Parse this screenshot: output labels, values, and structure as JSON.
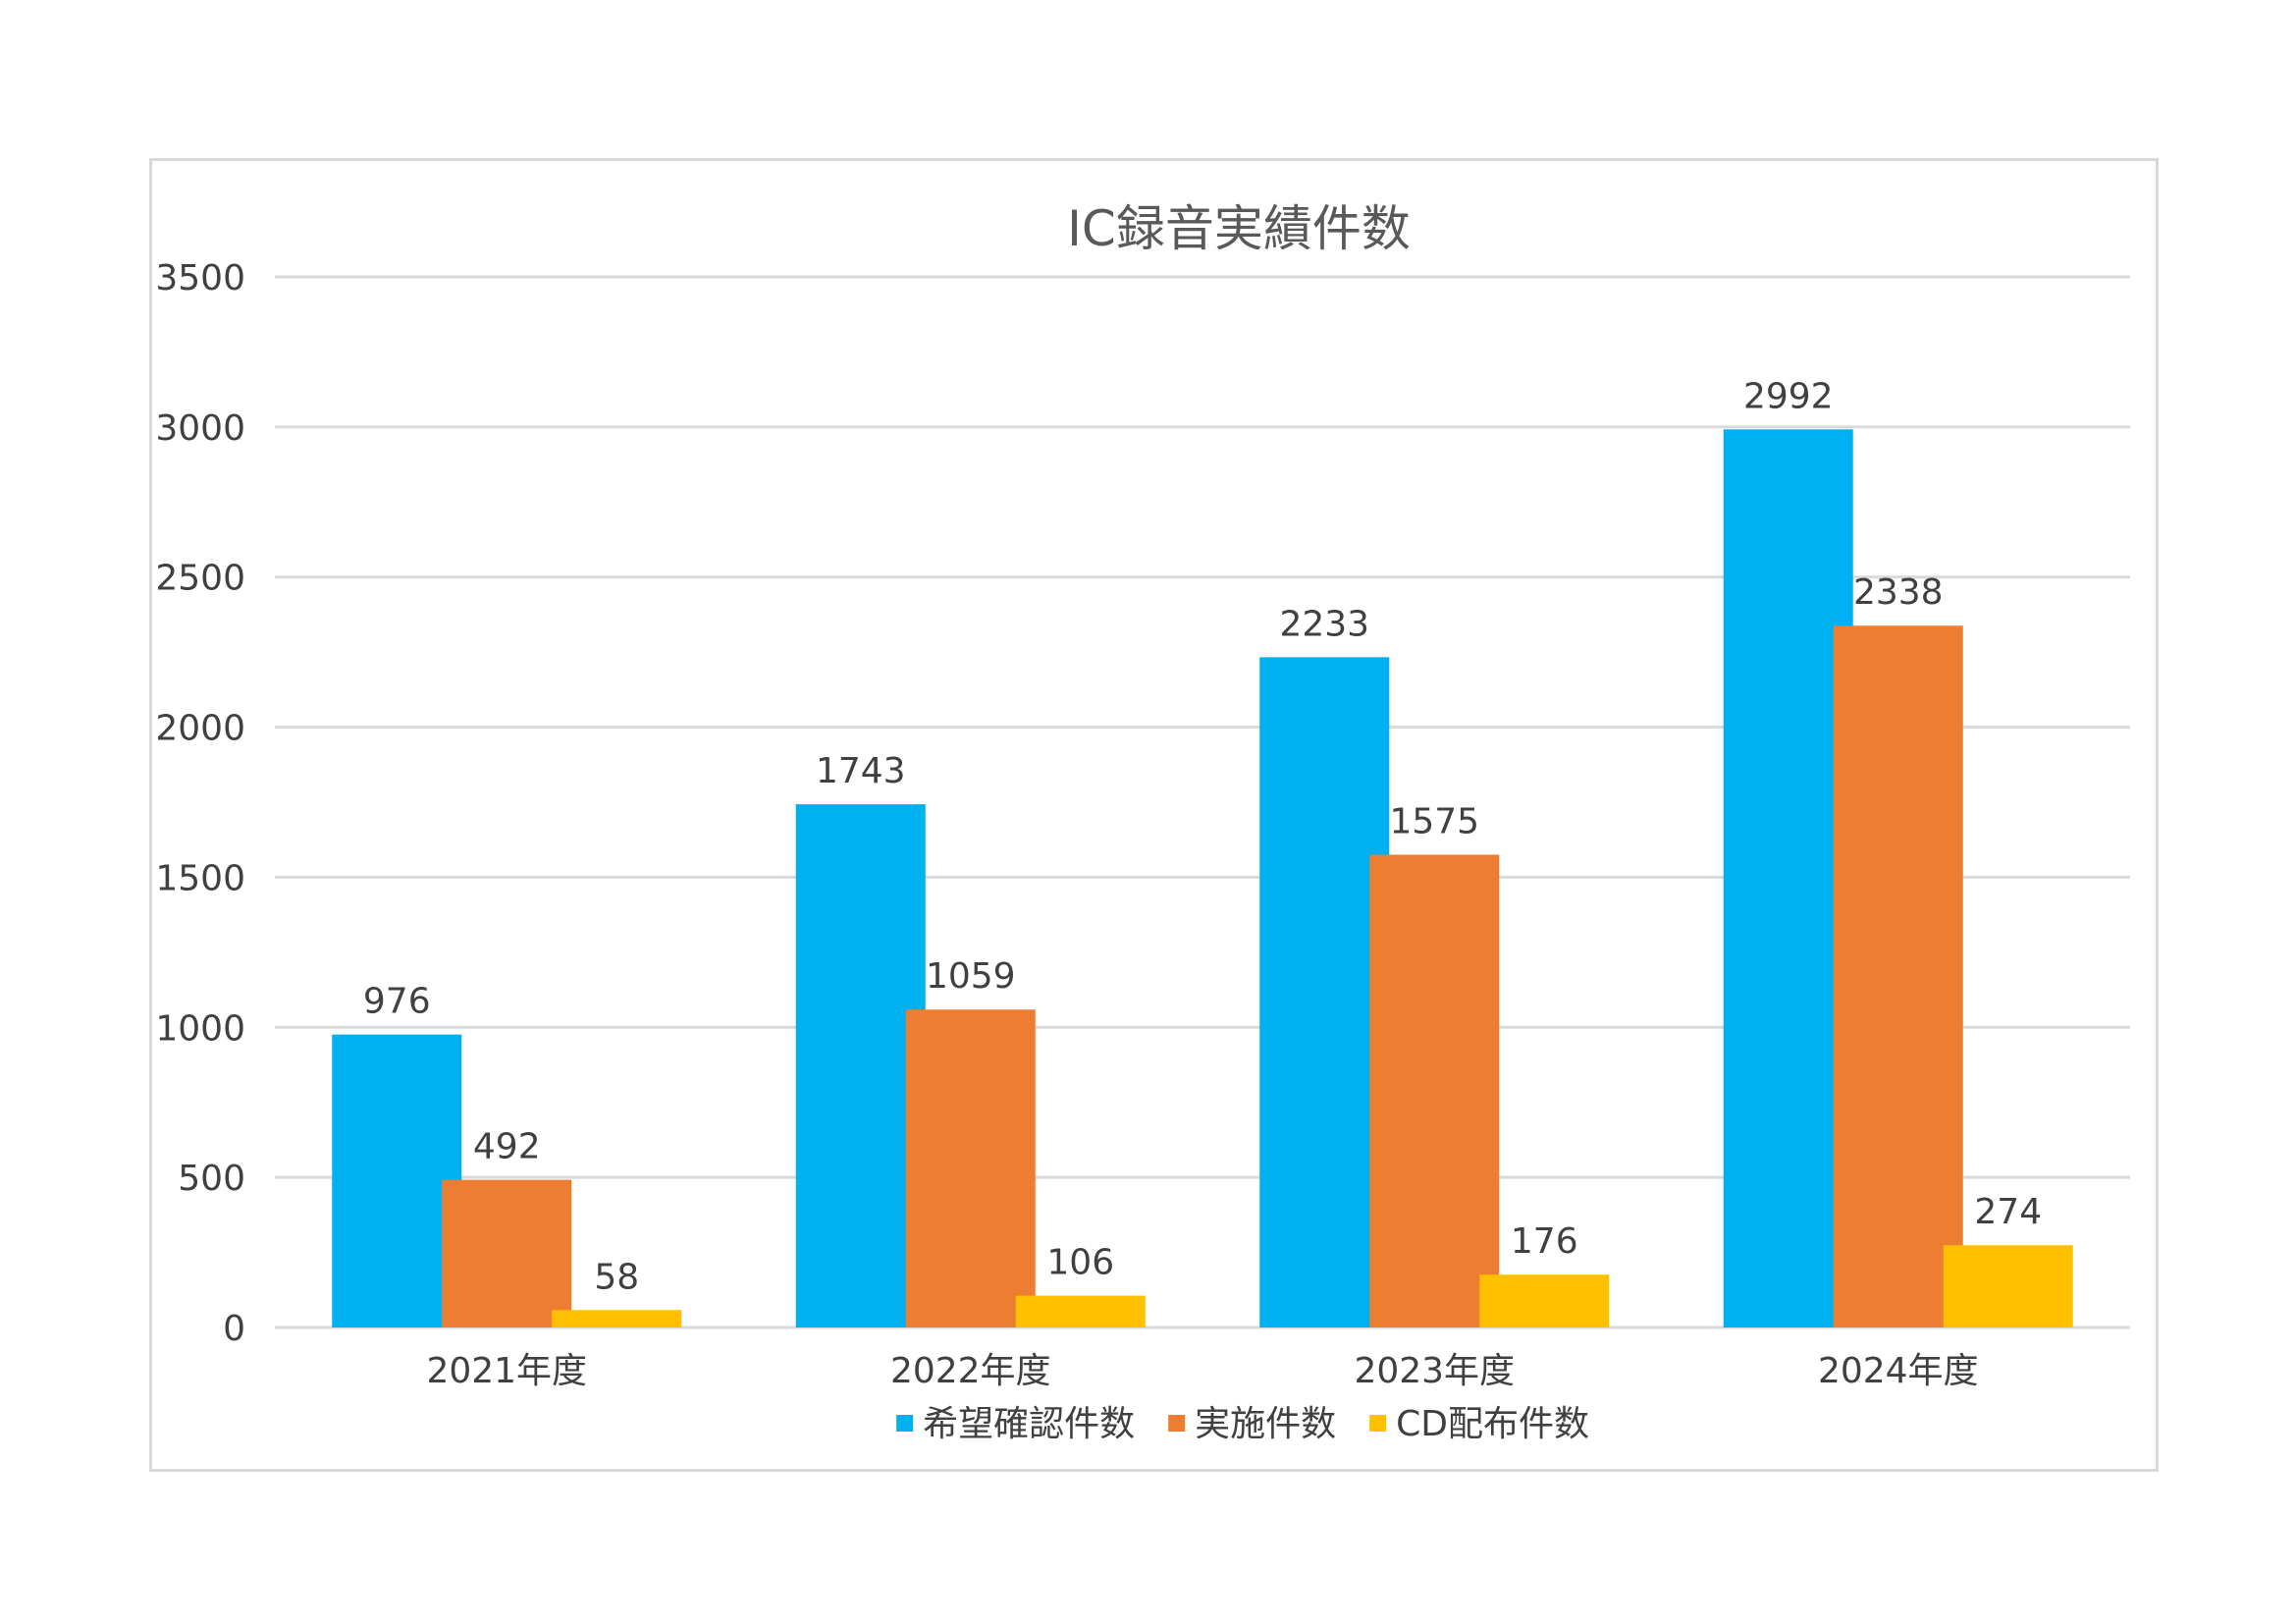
{
  "chart_data": {
    "type": "bar",
    "title": "IC録音実績件数",
    "xlabel": "",
    "ylabel": "",
    "categories": [
      "2021年度",
      "2022年度",
      "2023年度",
      "2024年度"
    ],
    "series": [
      {
        "name": "希望確認件数",
        "values": [
          976,
          1743,
          2233,
          2992
        ],
        "color": "#00b0f0"
      },
      {
        "name": "実施件数",
        "values": [
          492,
          1059,
          1575,
          2338
        ],
        "color": "#ed7d31"
      },
      {
        "name": "CD配布件数",
        "values": [
          58,
          106,
          176,
          274
        ],
        "color": "#ffc000"
      }
    ],
    "ylim": [
      0,
      3500
    ],
    "yticks": [
      0,
      500,
      1000,
      1500,
      2000,
      2500,
      3000,
      3500
    ],
    "grid": true,
    "legend_position": "bottom",
    "data_labels": true
  },
  "colors": {
    "gridline": "#d9d9d9",
    "text": "#404040",
    "title": "#595959",
    "frame": "#d9d9d9"
  }
}
